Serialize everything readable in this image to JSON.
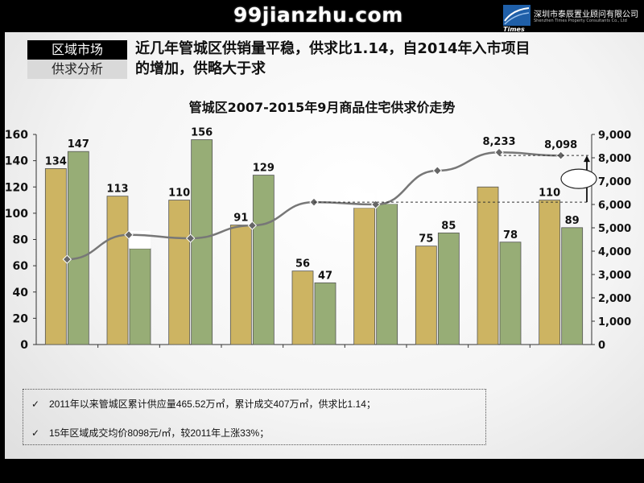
{
  "watermark": "99jianzhu.com",
  "logo": {
    "company_cn": "深圳市泰辰置业顾问有限公司",
    "company_en": "Shenzhen Times Property Consultants Co., Ltd",
    "brand": "Times"
  },
  "section": {
    "label_top": "区域市场",
    "label_bottom": "供求分析"
  },
  "headline": {
    "line1": "近几年管城区供销量平稳，供求比1.14，自2014年入市项目",
    "line2": "的增加，供略大于求"
  },
  "chart_data": {
    "type": "bar",
    "title": "管城区2007-2015年9月商品住宅供求价走势",
    "category_count": 9,
    "series": [
      {
        "values": [
          134,
          113,
          110,
          91,
          56,
          104,
          75,
          120,
          110
        ],
        "color": "#cdb462"
      },
      {
        "values": [
          147,
          73,
          156,
          129,
          47,
          107,
          85,
          78,
          89
        ],
        "color": "#97ad76"
      }
    ],
    "bar_labels": [
      [
        "134",
        "147"
      ],
      [
        "113",
        ""
      ],
      [
        "110",
        "156"
      ],
      [
        "91",
        "129"
      ],
      [
        "56",
        "47"
      ],
      [
        "",
        ""
      ],
      [
        "75",
        "85"
      ],
      [
        "",
        "78"
      ],
      [
        "110",
        "89"
      ]
    ],
    "line_series": {
      "values": [
        3650,
        4700,
        4550,
        5100,
        6100,
        6000,
        7450,
        8233,
        8098
      ],
      "color": "#777777"
    },
    "line_labels": [
      "",
      "",
      "",
      "",
      "",
      "",
      "",
      "8,233",
      "8,098"
    ],
    "y_left": {
      "lim": [
        0,
        160
      ],
      "ticks": [
        "0",
        "20",
        "40",
        "60",
        "80",
        "100",
        "120",
        "140",
        "160"
      ]
    },
    "y_right": {
      "lim": [
        0,
        9000
      ],
      "ticks": [
        "0",
        "1,000",
        "2,000",
        "3,000",
        "4,000",
        "5,000",
        "6,000",
        "7,000",
        "8,000",
        "9,000"
      ]
    },
    "grid": false,
    "legend": "none"
  },
  "notes": [
    {
      "mark": "✓",
      "text": "2011年以来管城区累计供应量465.52万㎡，累计成交407万㎡，供求比1.14；"
    },
    {
      "mark": "✓",
      "text": "15年区域成交均价8098元/㎡，较2011年上涨33%；"
    }
  ]
}
